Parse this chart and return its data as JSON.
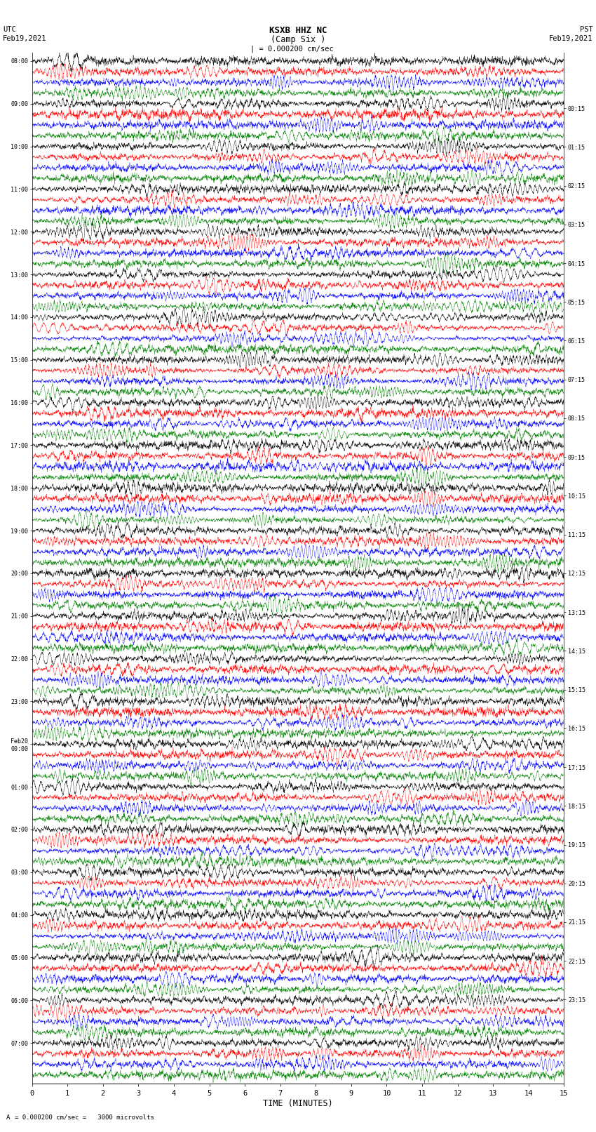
{
  "title_line1": "KSXB HHZ NC",
  "title_line2": "(Camp Six )",
  "scale_text": "| = 0.000200 cm/sec",
  "bottom_scale_text": "= 0.000200 cm/sec =   3000 microvolts",
  "xlabel": "TIME (MINUTES)",
  "xlim": [
    0,
    15
  ],
  "xticks": [
    0,
    1,
    2,
    3,
    4,
    5,
    6,
    7,
    8,
    9,
    10,
    11,
    12,
    13,
    14,
    15
  ],
  "bg_color": "#ffffff",
  "trace_colors": [
    "black",
    "red",
    "blue",
    "green"
  ],
  "left_times": [
    "08:00",
    "",
    "",
    "",
    "09:00",
    "",
    "",
    "",
    "10:00",
    "",
    "",
    "",
    "11:00",
    "",
    "",
    "",
    "12:00",
    "",
    "",
    "",
    "13:00",
    "",
    "",
    "",
    "14:00",
    "",
    "",
    "",
    "15:00",
    "",
    "",
    "",
    "16:00",
    "",
    "",
    "",
    "17:00",
    "",
    "",
    "",
    "18:00",
    "",
    "",
    "",
    "19:00",
    "",
    "",
    "",
    "20:00",
    "",
    "",
    "",
    "21:00",
    "",
    "",
    "",
    "22:00",
    "",
    "",
    "",
    "23:00",
    "",
    "",
    "",
    "Feb20\n00:00",
    "",
    "",
    "",
    "01:00",
    "",
    "",
    "",
    "02:00",
    "",
    "",
    "",
    "03:00",
    "",
    "",
    "",
    "04:00",
    "",
    "",
    "",
    "05:00",
    "",
    "",
    "",
    "06:00",
    "",
    "",
    "",
    "07:00",
    "",
    "",
    ""
  ],
  "right_times": [
    "00:15",
    "",
    "",
    "",
    "01:15",
    "",
    "",
    "",
    "02:15",
    "",
    "",
    "",
    "03:15",
    "",
    "",
    "",
    "04:15",
    "",
    "",
    "",
    "05:15",
    "",
    "",
    "",
    "06:15",
    "",
    "",
    "",
    "07:15",
    "",
    "",
    "",
    "08:15",
    "",
    "",
    "",
    "09:15",
    "",
    "",
    "",
    "10:15",
    "",
    "",
    "",
    "11:15",
    "",
    "",
    "",
    "12:15",
    "",
    "",
    "",
    "13:15",
    "",
    "",
    "",
    "14:15",
    "",
    "",
    "",
    "15:15",
    "",
    "",
    "",
    "16:15",
    "",
    "",
    "",
    "17:15",
    "",
    "",
    "",
    "18:15",
    "",
    "",
    "",
    "19:15",
    "",
    "",
    "",
    "20:15",
    "",
    "",
    "",
    "21:15",
    "",
    "",
    "",
    "22:15",
    "",
    "",
    "",
    "23:15",
    "",
    "",
    ""
  ],
  "n_rows": 96,
  "amplitude": 0.42,
  "noise_freq": 80,
  "seed": 42,
  "lw": 0.28
}
